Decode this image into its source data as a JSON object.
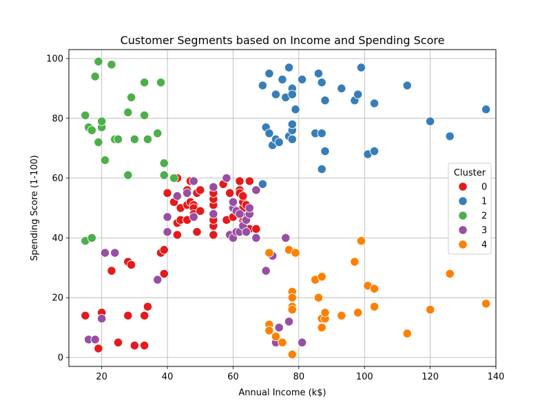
{
  "chart_data": {
    "type": "scatter",
    "title": "Customer Segments based on Income and Spending Score",
    "xlabel": "Annual Income (k$)",
    "ylabel": "Spending Score (1-100)",
    "xlim": [
      10,
      140
    ],
    "ylim": [
      -3,
      103
    ],
    "xticks": [
      20,
      40,
      60,
      80,
      100,
      120,
      140
    ],
    "yticks": [
      0,
      20,
      40,
      60,
      80,
      100
    ],
    "grid": true,
    "legend": {
      "title": "Cluster",
      "placement": "right"
    },
    "series": [
      {
        "name": "0",
        "color": "#e41a1c",
        "points": [
          [
            15,
            14
          ],
          [
            20,
            15
          ],
          [
            19,
            3
          ],
          [
            23,
            29
          ],
          [
            25,
            5
          ],
          [
            28,
            14
          ],
          [
            28,
            32
          ],
          [
            29,
            31
          ],
          [
            30,
            4
          ],
          [
            33,
            4
          ],
          [
            33,
            14
          ],
          [
            34,
            17
          ],
          [
            38,
            35
          ],
          [
            39,
            36
          ],
          [
            39,
            28
          ],
          [
            40,
            55
          ],
          [
            42,
            52
          ],
          [
            43,
            60
          ],
          [
            43,
            45
          ],
          [
            43,
            41
          ],
          [
            44,
            50
          ],
          [
            44,
            46
          ],
          [
            46,
            51
          ],
          [
            46,
            46
          ],
          [
            46,
            56
          ],
          [
            47,
            59
          ],
          [
            47,
            52
          ],
          [
            48,
            51
          ],
          [
            48,
            50
          ],
          [
            48,
            48
          ],
          [
            49,
            42
          ],
          [
            49,
            55
          ],
          [
            50,
            49
          ],
          [
            50,
            56
          ],
          [
            54,
            41
          ],
          [
            54,
            44
          ],
          [
            54,
            46
          ],
          [
            54,
            51
          ],
          [
            54,
            53
          ],
          [
            54,
            55
          ],
          [
            57,
            58
          ],
          [
            58,
            46
          ],
          [
            59,
            55
          ],
          [
            60,
            47
          ],
          [
            60,
            52
          ],
          [
            61,
            42
          ],
          [
            62,
            48
          ],
          [
            62,
            59
          ],
          [
            62,
            56
          ],
          [
            62,
            55
          ],
          [
            63,
            50
          ],
          [
            63,
            46
          ],
          [
            63,
            47
          ],
          [
            63,
            52
          ],
          [
            63,
            54
          ],
          [
            63,
            43
          ],
          [
            64,
            51
          ],
          [
            64,
            42
          ],
          [
            65,
            59
          ],
          [
            65,
            43
          ],
          [
            67,
            43
          ]
        ]
      },
      {
        "name": "1",
        "color": "#377eb8",
        "points": [
          [
            69,
            91
          ],
          [
            69,
            58
          ],
          [
            70,
            77
          ],
          [
            71,
            95
          ],
          [
            71,
            75
          ],
          [
            72,
            71
          ],
          [
            73,
            88
          ],
          [
            73,
            73
          ],
          [
            74,
            72
          ],
          [
            75,
            93
          ],
          [
            76,
            87
          ],
          [
            77,
            97
          ],
          [
            77,
            74
          ],
          [
            78,
            76
          ],
          [
            78,
            78
          ],
          [
            78,
            89
          ],
          [
            78,
            90
          ],
          [
            78,
            88
          ],
          [
            78,
            73
          ],
          [
            79,
            83
          ],
          [
            81,
            93
          ],
          [
            85,
            75
          ],
          [
            86,
            95
          ],
          [
            87,
            75
          ],
          [
            87,
            92
          ],
          [
            87,
            63
          ],
          [
            88,
            86
          ],
          [
            88,
            69
          ],
          [
            93,
            90
          ],
          [
            97,
            86
          ],
          [
            98,
            88
          ],
          [
            99,
            97
          ],
          [
            101,
            68
          ],
          [
            103,
            85
          ],
          [
            103,
            69
          ],
          [
            113,
            91
          ],
          [
            120,
            79
          ],
          [
            126,
            74
          ],
          [
            137,
            83
          ]
        ]
      },
      {
        "name": "2",
        "color": "#4daf4a",
        "points": [
          [
            15,
            39
          ],
          [
            15,
            81
          ],
          [
            16,
            77
          ],
          [
            17,
            40
          ],
          [
            17,
            76
          ],
          [
            18,
            94
          ],
          [
            19,
            99
          ],
          [
            19,
            72
          ],
          [
            20,
            77
          ],
          [
            20,
            79
          ],
          [
            21,
            66
          ],
          [
            23,
            98
          ],
          [
            24,
            73
          ],
          [
            25,
            73
          ],
          [
            28,
            82
          ],
          [
            28,
            61
          ],
          [
            29,
            87
          ],
          [
            30,
            73
          ],
          [
            33,
            92
          ],
          [
            33,
            81
          ],
          [
            34,
            73
          ],
          [
            37,
            75
          ],
          [
            38,
            92
          ],
          [
            39,
            65
          ],
          [
            39,
            61
          ],
          [
            42,
            60
          ]
        ]
      },
      {
        "name": "3",
        "color": "#984ea3",
        "points": [
          [
            16,
            6
          ],
          [
            18,
            6
          ],
          [
            20,
            13
          ],
          [
            21,
            35
          ],
          [
            24,
            35
          ],
          [
            37,
            26
          ],
          [
            40,
            47
          ],
          [
            40,
            42
          ],
          [
            43,
            54
          ],
          [
            46,
            55
          ],
          [
            48,
            59
          ],
          [
            48,
            47
          ],
          [
            54,
            57
          ],
          [
            54,
            48
          ],
          [
            58,
            60
          ],
          [
            59,
            41
          ],
          [
            60,
            40
          ],
          [
            60,
            50
          ],
          [
            60,
            52
          ],
          [
            61,
            49
          ],
          [
            61,
            42
          ],
          [
            62,
            42
          ],
          [
            62,
            48
          ],
          [
            63,
            44
          ],
          [
            64,
            42
          ],
          [
            64,
            46
          ],
          [
            65,
            48
          ],
          [
            65,
            50
          ],
          [
            67,
            56
          ],
          [
            67,
            40
          ],
          [
            70,
            29
          ],
          [
            72,
            34
          ],
          [
            73,
            5
          ],
          [
            74,
            10
          ],
          [
            76,
            40
          ],
          [
            77,
            12
          ],
          [
            81,
            5
          ]
        ]
      },
      {
        "name": "4",
        "color": "#ff7f00",
        "points": [
          [
            71,
            35
          ],
          [
            71,
            11
          ],
          [
            71,
            9
          ],
          [
            73,
            7
          ],
          [
            75,
            5
          ],
          [
            77,
            36
          ],
          [
            78,
            22
          ],
          [
            78,
            20
          ],
          [
            78,
            17
          ],
          [
            78,
            16
          ],
          [
            78,
            1
          ],
          [
            79,
            35
          ],
          [
            85,
            26
          ],
          [
            86,
            20
          ],
          [
            87,
            27
          ],
          [
            87,
            13
          ],
          [
            87,
            10
          ],
          [
            88,
            13
          ],
          [
            88,
            15
          ],
          [
            93,
            14
          ],
          [
            97,
            32
          ],
          [
            98,
            15
          ],
          [
            99,
            39
          ],
          [
            101,
            24
          ],
          [
            103,
            23
          ],
          [
            103,
            17
          ],
          [
            113,
            8
          ],
          [
            120,
            16
          ],
          [
            126,
            28
          ],
          [
            137,
            18
          ]
        ]
      }
    ]
  }
}
